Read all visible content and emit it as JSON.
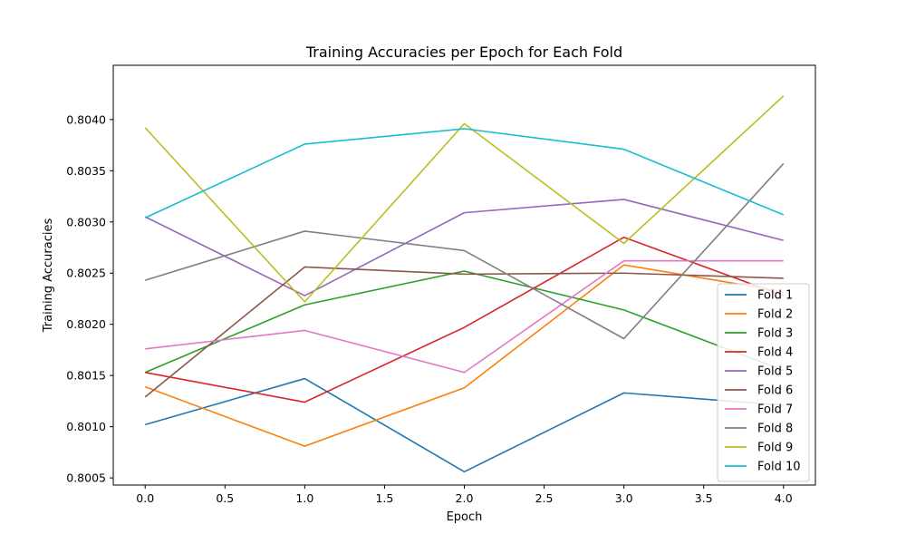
{
  "chart_data": {
    "type": "line",
    "title": "Training Accuracies per Epoch for Each Fold",
    "xlabel": "Epoch",
    "ylabel": "Training Accuracies",
    "xlim": [
      -0.2,
      4.2
    ],
    "ylim": [
      0.80043,
      0.80453
    ],
    "xticks": [
      0.0,
      0.5,
      1.0,
      1.5,
      2.0,
      2.5,
      3.0,
      3.5,
      4.0
    ],
    "xtick_labels": [
      "0.0",
      "0.5",
      "1.0",
      "1.5",
      "2.0",
      "2.5",
      "3.0",
      "3.5",
      "4.0"
    ],
    "yticks": [
      0.8005,
      0.801,
      0.8015,
      0.802,
      0.8025,
      0.803,
      0.8035,
      0.804
    ],
    "ytick_labels": [
      "0.8005",
      "0.8010",
      "0.8015",
      "0.8020",
      "0.8025",
      "0.8030",
      "0.8035",
      "0.8040"
    ],
    "grid": false,
    "legend_position": "lower-right",
    "x": [
      0,
      1,
      2,
      3,
      4
    ],
    "series": [
      {
        "name": "Fold 1",
        "color": "#1f77b4",
        "values": [
          0.80102,
          0.80147,
          0.80056,
          0.80133,
          0.80121
        ]
      },
      {
        "name": "Fold 2",
        "color": "#ff7f0e",
        "values": [
          0.80139,
          0.80081,
          0.80138,
          0.80258,
          0.80232
        ]
      },
      {
        "name": "Fold 3",
        "color": "#2ca02c",
        "values": [
          0.80153,
          0.80219,
          0.80252,
          0.80214,
          0.80155
        ]
      },
      {
        "name": "Fold 4",
        "color": "#d62728",
        "values": [
          0.80153,
          0.80124,
          0.80197,
          0.80285,
          0.80228
        ]
      },
      {
        "name": "Fold 5",
        "color": "#9467bd",
        "values": [
          0.80305,
          0.80228,
          0.80309,
          0.80322,
          0.80282
        ]
      },
      {
        "name": "Fold 6",
        "color": "#8c564b",
        "values": [
          0.80129,
          0.80256,
          0.80249,
          0.8025,
          0.80245
        ]
      },
      {
        "name": "Fold 7",
        "color": "#e377c2",
        "values": [
          0.80176,
          0.80194,
          0.80153,
          0.80262,
          0.80262
        ]
      },
      {
        "name": "Fold 8",
        "color": "#7f7f7f",
        "values": [
          0.80243,
          0.80291,
          0.80272,
          0.80186,
          0.80357
        ]
      },
      {
        "name": "Fold 9",
        "color": "#bcbd22",
        "values": [
          0.80392,
          0.80222,
          0.80396,
          0.80279,
          0.80423
        ]
      },
      {
        "name": "Fold 10",
        "color": "#17becf",
        "values": [
          0.80304,
          0.80376,
          0.80391,
          0.80371,
          0.80307
        ]
      }
    ]
  }
}
